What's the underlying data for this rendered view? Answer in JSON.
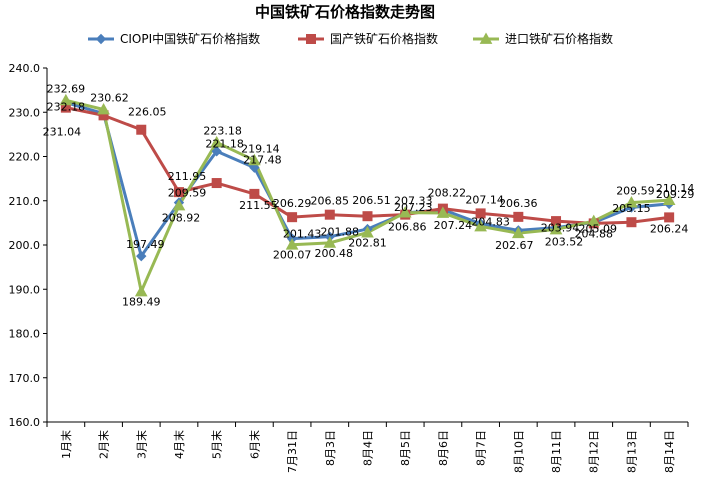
{
  "chart_data": {
    "type": "line",
    "title": "中国铁矿石价格指数走势图",
    "xlabel": "",
    "ylabel": "",
    "categories": [
      "1月末",
      "2月末",
      "3月末",
      "4月末",
      "5月末",
      "6月末",
      "7月31日",
      "8月3日",
      "8月4日",
      "8月5日",
      "8月6日",
      "8月7日",
      "8月10日",
      "8月11日",
      "8月12日",
      "8月13日",
      "8月14日"
    ],
    "ylim": [
      160.0,
      240.0
    ],
    "yticks": [
      "160.0",
      "170.0",
      "180.0",
      "190.0",
      "200.0",
      "210.0",
      "220.0",
      "230.0",
      "240.0"
    ],
    "legend_position": "top",
    "grid": false,
    "series": [
      {
        "name": "CIOPI中国铁矿石价格指数",
        "color": "#4a7ebb",
        "marker": "diamond",
        "values": [
          232.18,
          229.7,
          197.49,
          209.59,
          221.18,
          217.48,
          201.43,
          201.88,
          203.6,
          207.23,
          208.0,
          204.83,
          203.3,
          203.94,
          205.09,
          208.5,
          209.29
        ],
        "labels": [
          "232.18",
          null,
          "197.49",
          "209.59",
          "221.18",
          "217.48",
          "201.43",
          "201.88",
          null,
          "207.23",
          null,
          "204.83",
          null,
          "203.94",
          "205.09",
          null,
          "209.29"
        ]
      },
      {
        "name": "国产铁矿石价格指数",
        "color": "#be4b48",
        "marker": "square",
        "values": [
          231.04,
          229.3,
          226.05,
          211.95,
          214.0,
          211.55,
          206.29,
          206.85,
          206.51,
          206.86,
          208.22,
          207.14,
          206.36,
          205.4,
          204.88,
          205.15,
          206.24
        ],
        "labels": [
          "231.04",
          null,
          "226.05",
          "211.95",
          null,
          "211.55",
          "206.29",
          "206.85",
          "206.51",
          "206.86",
          "208.22",
          "207.14",
          "206.36",
          null,
          "204.88",
          "205.15",
          "206.24"
        ]
      },
      {
        "name": "进口铁矿石价格指数",
        "color": "#98b954",
        "marker": "triangle",
        "values": [
          232.69,
          230.62,
          189.49,
          208.92,
          223.18,
          219.14,
          200.07,
          200.48,
          202.81,
          207.33,
          207.24,
          204.2,
          202.67,
          203.52,
          205.4,
          209.59,
          210.14
        ],
        "labels": [
          "232.69",
          "230.62",
          "189.49",
          "208.92",
          "223.18",
          "219.14",
          "200.07",
          "200.48",
          "202.81",
          "207.33",
          "207.24",
          null,
          "202.67",
          "203.52",
          null,
          "209.59",
          "210.14"
        ]
      }
    ]
  }
}
